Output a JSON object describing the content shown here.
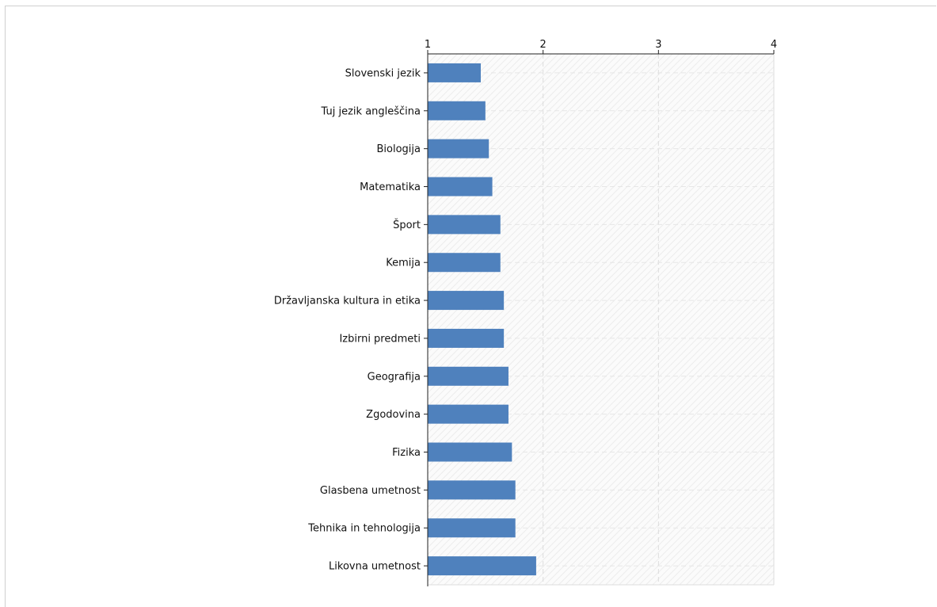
{
  "chart_data": {
    "type": "bar",
    "orientation": "horizontal",
    "categories": [
      "Slovenski jezik",
      "Tuj jezik angleščina",
      "Biologija",
      "Matematika",
      "Šport",
      "Kemija",
      "Državljanska kultura in etika",
      "Izbirni predmeti",
      "Geografija",
      "Zgodovina",
      "Fizika",
      "Glasbena umetnost",
      "Tehnika in tehnologija",
      "Likovna umetnost"
    ],
    "values": [
      1.46,
      1.5,
      1.53,
      1.56,
      1.63,
      1.63,
      1.66,
      1.66,
      1.7,
      1.7,
      1.73,
      1.76,
      1.76,
      1.94
    ],
    "xticks": [
      "1",
      "2",
      "3",
      "4"
    ],
    "xlim": [
      1,
      4
    ],
    "axis_position": "top",
    "grid": true,
    "bar_color": "#4f81bd"
  }
}
